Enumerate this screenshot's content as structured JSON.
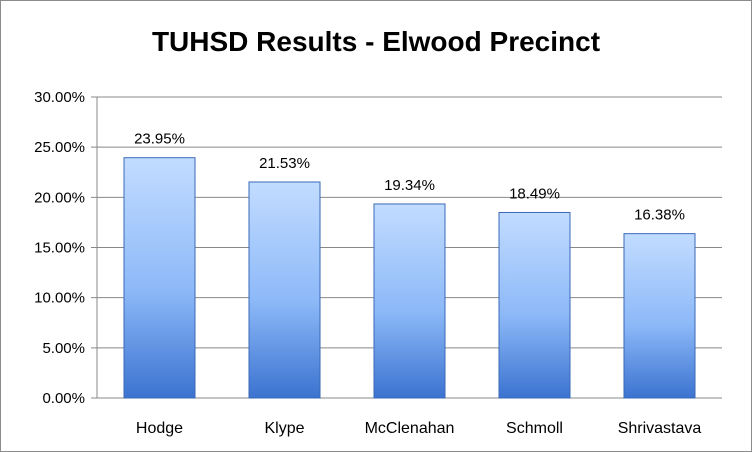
{
  "chart_data": {
    "type": "bar",
    "title": "TUHSD Results - Elwood Precinct",
    "categories": [
      "Hodge",
      "Klype",
      "McClenahan",
      "Schmoll",
      "Shrivastava"
    ],
    "values": [
      23.95,
      21.53,
      19.34,
      18.49,
      16.38
    ],
    "data_labels": [
      "23.95%",
      "21.53%",
      "19.34%",
      "18.49%",
      "16.38%"
    ],
    "y_ticks": [
      "0.00%",
      "5.00%",
      "10.00%",
      "15.00%",
      "20.00%",
      "25.00%",
      "30.00%"
    ],
    "y_tick_values": [
      0,
      5,
      10,
      15,
      20,
      25,
      30
    ],
    "ylim": [
      0,
      30
    ],
    "grid": true,
    "legend": "none",
    "colors": {
      "bar_top": "#c2dcff",
      "bar_mid": "#8db9f8",
      "bar_bottom": "#3b73d0",
      "bar_edge": "#3a6ab8",
      "grid": "#888888"
    }
  }
}
